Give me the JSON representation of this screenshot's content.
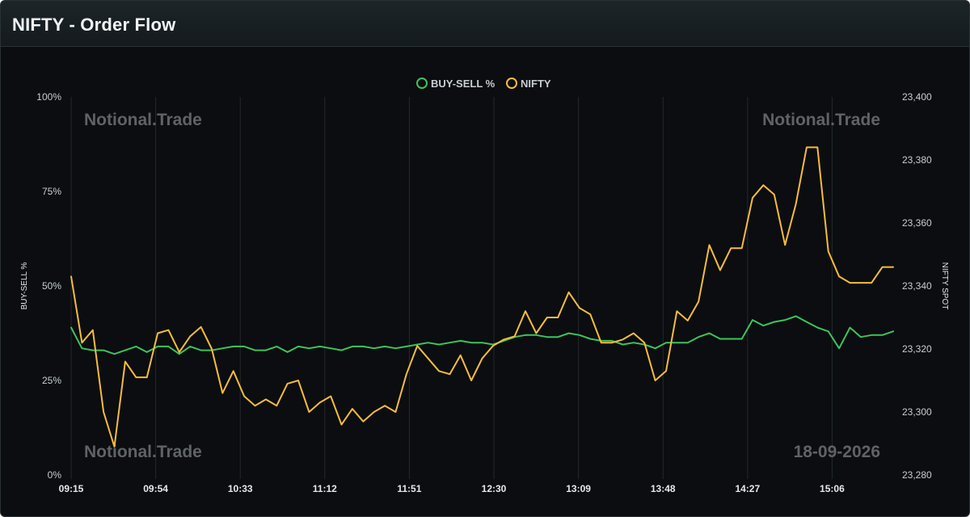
{
  "header": {
    "title": "NIFTY - Order Flow"
  },
  "watermarks": {
    "brand": "Notional.Trade",
    "date": "18-09-2026"
  },
  "colors": {
    "buy_sell": "#3cc45c",
    "nifty": "#f5bd3b",
    "grid": "#23292d"
  },
  "chart_data": {
    "type": "line",
    "legend": [
      "BUY-SELL %",
      "NIFTY"
    ],
    "legend_position": "top-center",
    "grid": "vertical",
    "y_left": {
      "label": "BUY-SELL %",
      "ticks": [
        "0%",
        "25%",
        "50%",
        "75%",
        "100%"
      ],
      "range": [
        0,
        100
      ]
    },
    "y_right": {
      "label": "NIFTY SPOT",
      "ticks": [
        "23,280",
        "23,300",
        "23,320",
        "23,340",
        "23,360",
        "23,380",
        "23,400"
      ],
      "range": [
        23280,
        23400
      ]
    },
    "x_ticks": [
      "09:15",
      "09:54",
      "10:33",
      "11:12",
      "11:51",
      "12:30",
      "13:09",
      "13:48",
      "14:27",
      "15:06"
    ],
    "series": [
      {
        "name": "BUY-SELL %",
        "axis": "left",
        "values": [
          39,
          33.5,
          33,
          33,
          32,
          33,
          34,
          32.5,
          34,
          34,
          32,
          34,
          33,
          33,
          33.5,
          34,
          34,
          33,
          33,
          34,
          32.5,
          34,
          33.5,
          34,
          33.5,
          33,
          34,
          34,
          33.5,
          34,
          33.5,
          34,
          34.5,
          35,
          34.5,
          35,
          35.5,
          35,
          35,
          34.5,
          35.5,
          36.5,
          37,
          37,
          36.5,
          36.5,
          37.5,
          37,
          36,
          35.5,
          35.5,
          34.5,
          35,
          34.5,
          33.5,
          35,
          35,
          35,
          36.5,
          37.5,
          36,
          36,
          36,
          41,
          39.5,
          40.5,
          41,
          42,
          40.5,
          39,
          38,
          33.5,
          39,
          36.5,
          37,
          37,
          38
        ]
      },
      {
        "name": "NIFTY",
        "axis": "right",
        "values": [
          23343,
          23322,
          23326,
          23300,
          23289,
          23316,
          23311,
          23311,
          23325,
          23326,
          23319,
          23324,
          23327,
          23320,
          23306,
          23313,
          23305,
          23302,
          23304,
          23302,
          23309,
          23310,
          23300,
          23303,
          23305,
          23296,
          23301,
          23297,
          23300,
          23302,
          23300,
          23312,
          23321,
          23317,
          23313,
          23312,
          23318,
          23310,
          23317,
          23321,
          23323,
          23324,
          23332,
          23325,
          23330,
          23330,
          23338,
          23333,
          23331,
          23322,
          23322,
          23323,
          23325,
          23322,
          23310,
          23313,
          23332,
          23329,
          23335,
          23353,
          23345,
          23352,
          23352,
          23368,
          23372,
          23369,
          23353,
          23366,
          23384,
          23384,
          23351,
          23343,
          23341,
          23341,
          23341,
          23346,
          23346
        ]
      }
    ]
  }
}
